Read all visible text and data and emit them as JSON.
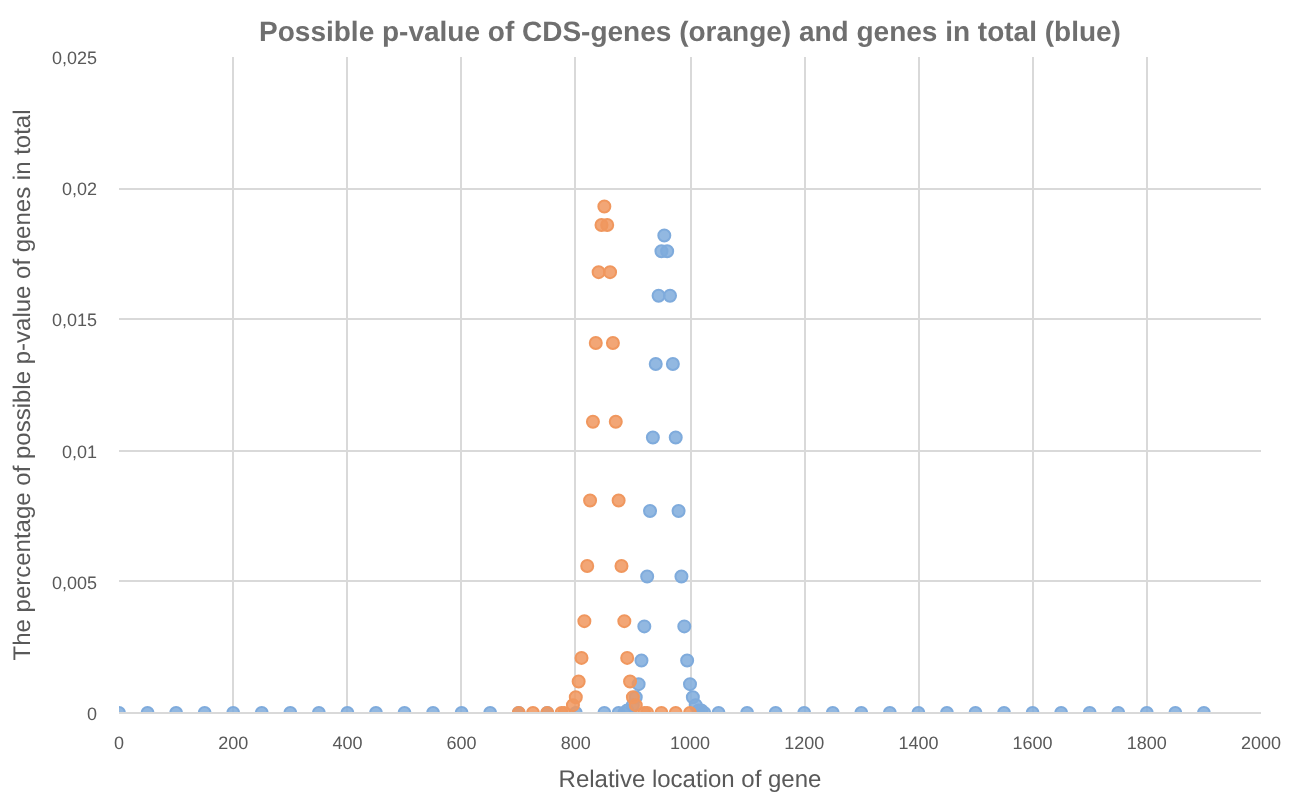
{
  "chart_data": {
    "type": "scatter",
    "title": "Possible p-value of CDS-genes (orange) and genes in total (blue)",
    "xlabel": "Relative location of gene",
    "ylabel": "The percentage of possible p-value of genes in total",
    "xlim": [
      0,
      2000
    ],
    "xticks": [
      0,
      200,
      400,
      600,
      800,
      1000,
      1200,
      1400,
      1600,
      1800,
      2000
    ],
    "ylim": [
      0,
      0.025
    ],
    "yticks": [
      {
        "value": 0,
        "label": "0"
      },
      {
        "value": 0.005,
        "label": "0,005"
      },
      {
        "value": 0.01,
        "label": "0,01"
      },
      {
        "value": 0.015,
        "label": "0,015"
      },
      {
        "value": 0.02,
        "label": "0,02"
      },
      {
        "value": 0.025,
        "label": "0,025"
      }
    ],
    "grid": true,
    "marker": "circle",
    "series": [
      {
        "color": "#7fabdc",
        "x": [
          0,
          50,
          100,
          150,
          200,
          250,
          300,
          350,
          400,
          450,
          500,
          550,
          600,
          650,
          700,
          750,
          800,
          850,
          875,
          885,
          890,
          900,
          905,
          910,
          915,
          920,
          925,
          930,
          935,
          940,
          945,
          950,
          955,
          960,
          965,
          970,
          975,
          980,
          985,
          990,
          995,
          1000,
          1005,
          1010,
          1015,
          1020,
          1025,
          1050,
          1100,
          1150,
          1200,
          1250,
          1300,
          1350,
          1400,
          1450,
          1500,
          1550,
          1600,
          1650,
          1700,
          1750,
          1800,
          1850,
          1900
        ],
        "values": [
          0,
          0,
          0,
          0,
          0,
          0,
          0,
          0,
          0,
          0,
          0,
          0,
          0,
          0,
          0,
          0,
          0,
          0,
          0,
          0,
          0.0001,
          0.0003,
          0.0006,
          0.0011,
          0.002,
          0.0033,
          0.0052,
          0.0077,
          0.0105,
          0.0133,
          0.0159,
          0.0176,
          0.0182,
          0.0176,
          0.0159,
          0.0133,
          0.0105,
          0.0077,
          0.0052,
          0.0033,
          0.002,
          0.0011,
          0.0006,
          0.0003,
          0.0001,
          0.0001,
          0,
          0,
          0,
          0,
          0,
          0,
          0,
          0,
          0,
          0,
          0,
          0,
          0,
          0,
          0,
          0,
          0,
          0,
          0
        ]
      },
      {
        "color": "#f0975e",
        "x": [
          700,
          725,
          750,
          775,
          780,
          795,
          800,
          805,
          810,
          815,
          820,
          825,
          830,
          835,
          840,
          845,
          850,
          855,
          860,
          865,
          870,
          875,
          880,
          885,
          890,
          895,
          900,
          905,
          920,
          925,
          950,
          975,
          1000
        ],
        "values": [
          0,
          0,
          0,
          0,
          0,
          0.0003,
          0.0006,
          0.0012,
          0.0021,
          0.0035,
          0.0056,
          0.0081,
          0.0111,
          0.0141,
          0.0168,
          0.0186,
          0.0193,
          0.0186,
          0.0168,
          0.0141,
          0.0111,
          0.0081,
          0.0056,
          0.0035,
          0.0021,
          0.0012,
          0.0006,
          0.0003,
          0,
          0,
          0,
          0,
          0
        ]
      }
    ]
  }
}
